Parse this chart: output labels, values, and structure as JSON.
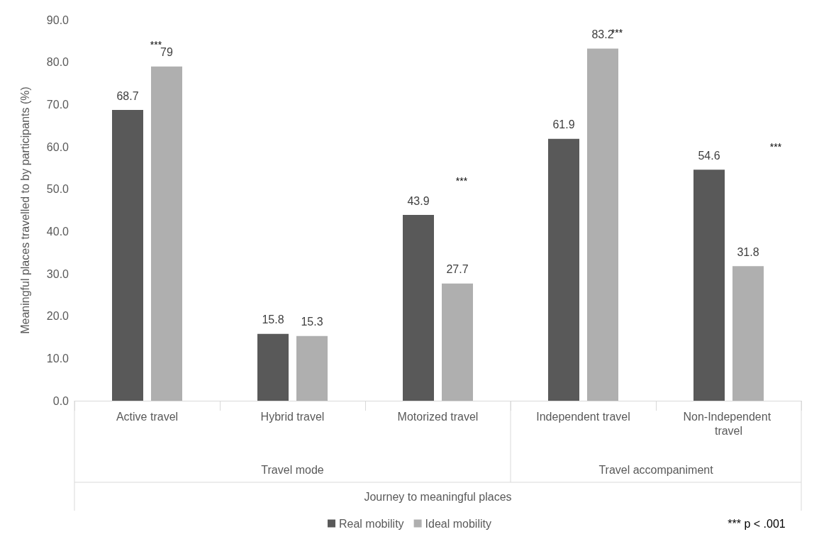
{
  "chart_data": {
    "type": "bar",
    "categories": [
      "Active travel",
      "Hybrid travel",
      "Motorized travel",
      "Independent travel",
      "Non-Independent travel"
    ],
    "series": [
      {
        "name": "Real mobility",
        "color": "#595959",
        "values": [
          68.7,
          15.8,
          43.9,
          61.9,
          54.6
        ]
      },
      {
        "name": "Ideal mobility",
        "color": "#afafaf",
        "values": [
          79,
          15.3,
          27.7,
          83.2,
          31.8
        ]
      }
    ],
    "ylabel": "Meaningful places travelled to by participants (%)",
    "xlabel": "Journey to meaningful places",
    "ylim": [
      0,
      90
    ],
    "yticks": [
      {
        "value": 0,
        "label": "0.0"
      },
      {
        "value": 10,
        "label": "10.0"
      },
      {
        "value": 20,
        "label": "20.0"
      },
      {
        "value": 30,
        "label": "30.0"
      },
      {
        "value": 40,
        "label": "40.0"
      },
      {
        "value": 50,
        "label": "50.0"
      },
      {
        "value": 60,
        "label": "60.0"
      },
      {
        "value": 70,
        "label": "70.0"
      },
      {
        "value": 80,
        "label": "80.0"
      },
      {
        "value": 90,
        "label": "90.0"
      }
    ],
    "data_labels": true,
    "grid": false,
    "legend": "bottom",
    "annotations": [
      "Travel mode",
      "Travel accompaniment",
      "***",
      "***",
      "***",
      "***",
      "*** p < .001"
    ]
  }
}
